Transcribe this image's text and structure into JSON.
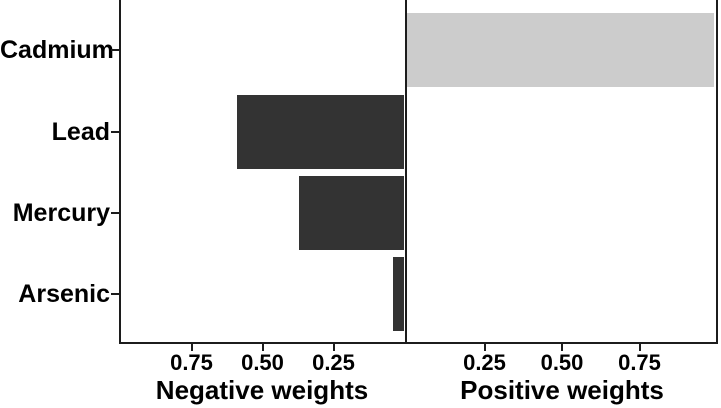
{
  "chart_data": {
    "type": "bar",
    "orientation": "horizontal-diverging",
    "title": "",
    "categories": [
      "Cadmium",
      "Lead",
      "Mercury",
      "Arsenic"
    ],
    "series": [
      {
        "name": "weights",
        "values": [
          0.99,
          -0.59,
          -0.37,
          -0.04
        ]
      }
    ],
    "panels": [
      {
        "side": "negative",
        "xlabel": "Negative weights",
        "tick_values": [
          0.75,
          0.5,
          0.25
        ],
        "tick_labels": [
          "0.75",
          "0.50",
          "0.25"
        ],
        "xlim": [
          0,
          1
        ],
        "reversed": true
      },
      {
        "side": "positive",
        "xlabel": "Positive weights",
        "tick_values": [
          0.25,
          0.5,
          0.75
        ],
        "tick_labels": [
          "0.25",
          "0.50",
          "0.75"
        ],
        "xlim": [
          0,
          1
        ]
      }
    ],
    "colors": {
      "negative_bar": "#333333",
      "positive_bar": "#cccccc",
      "axis_line": "#1c1c1c",
      "text": "#000000"
    },
    "grid": false,
    "legend": false
  }
}
